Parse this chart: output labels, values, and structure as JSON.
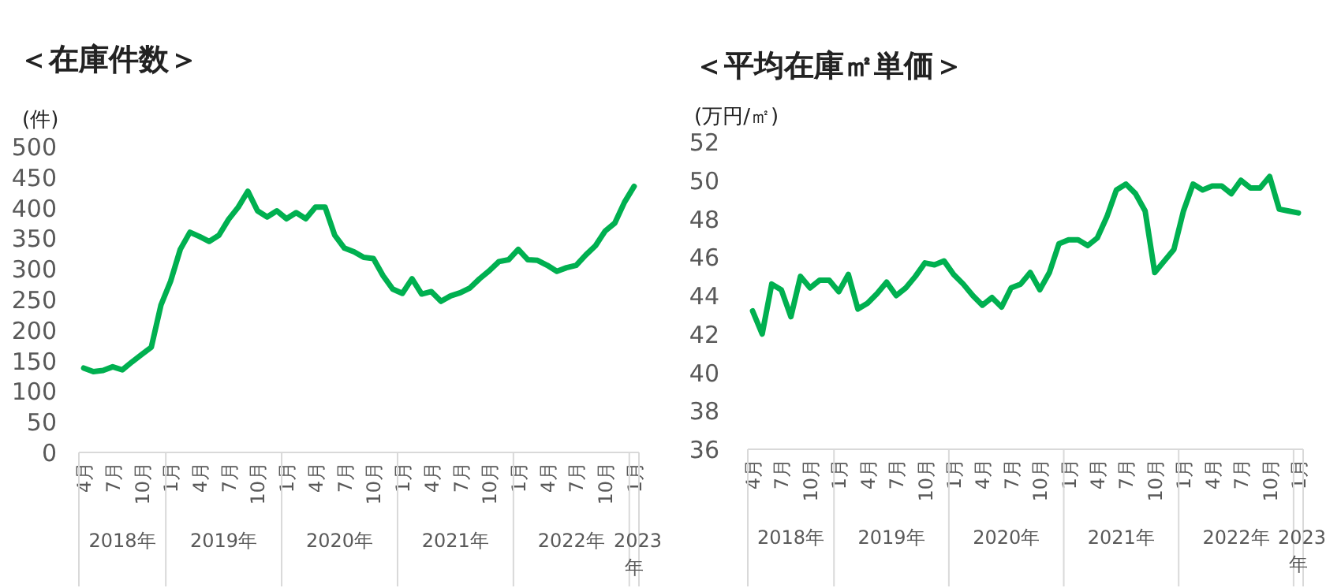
{
  "chart_data": [
    {
      "type": "line",
      "title": "＜在庫件数＞",
      "ylabel": "(件)",
      "color": "#00b050",
      "ylim": [
        0,
        500
      ],
      "yticks": [
        0,
        50,
        100,
        150,
        200,
        250,
        300,
        350,
        400,
        450,
        500
      ],
      "categories": [
        "4月",
        null,
        null,
        "7月",
        null,
        null,
        "10月",
        null,
        null,
        "1月",
        null,
        null,
        "4月",
        null,
        null,
        "7月",
        null,
        null,
        "10月",
        null,
        null,
        "1月",
        null,
        null,
        "4月",
        null,
        null,
        "7月",
        null,
        null,
        "10月",
        null,
        null,
        "1月",
        null,
        null,
        "4月",
        null,
        null,
        "7月",
        null,
        null,
        "10月",
        null,
        null,
        "1月",
        null,
        null,
        "4月",
        null,
        null,
        "7月",
        null,
        null,
        "10月",
        null,
        null,
        "1月"
      ],
      "values": [
        138,
        132,
        134,
        140,
        135,
        148,
        160,
        172,
        241,
        280,
        332,
        360,
        353,
        345,
        355,
        381,
        401,
        427,
        395,
        385,
        395,
        382,
        392,
        382,
        401,
        401,
        355,
        334,
        328,
        319,
        317,
        289,
        267,
        260,
        284,
        259,
        263,
        247,
        256,
        261,
        269,
        284,
        297,
        312,
        315,
        332,
        315,
        314,
        306,
        296,
        302,
        306,
        323,
        338,
        362,
        375,
        409,
        435
      ],
      "annotations": [
        "2018年",
        "2019年",
        "2020年",
        "2021年",
        "2022年",
        "2023年"
      ]
    },
    {
      "type": "line",
      "title": "＜平均在庫㎡単価＞",
      "ylabel": "(万円/㎡)",
      "color": "#00b050",
      "ylim": [
        36,
        52
      ],
      "yticks": [
        36,
        38,
        40,
        42,
        44,
        46,
        48,
        50,
        52
      ],
      "categories": [
        "4月",
        null,
        null,
        "7月",
        null,
        null,
        "10月",
        null,
        null,
        "1月",
        null,
        null,
        "4月",
        null,
        null,
        "7月",
        null,
        null,
        "10月",
        null,
        null,
        "1月",
        null,
        null,
        "4月",
        null,
        null,
        "7月",
        null,
        null,
        "10月",
        null,
        null,
        "1月",
        null,
        null,
        "4月",
        null,
        null,
        "7月",
        null,
        null,
        "10月",
        null,
        null,
        "1月",
        null,
        null,
        "4月",
        null,
        null,
        "7月",
        null,
        null,
        "10月",
        null,
        null,
        "1月"
      ],
      "values": [
        43.2,
        42.0,
        44.6,
        44.3,
        42.9,
        45.0,
        44.4,
        44.8,
        44.8,
        44.2,
        45.1,
        43.3,
        43.6,
        44.1,
        44.7,
        44.0,
        44.4,
        45.0,
        45.7,
        45.6,
        45.8,
        45.1,
        44.6,
        44.0,
        43.5,
        43.9,
        43.4,
        44.4,
        44.6,
        45.2,
        44.3,
        45.2,
        46.7,
        46.9,
        46.9,
        46.6,
        47.0,
        48.1,
        49.5,
        49.8,
        49.3,
        48.4,
        45.2,
        45.8,
        46.4,
        48.4,
        49.8,
        49.5,
        49.7,
        49.7,
        49.3,
        50.0,
        49.6,
        49.6,
        50.2,
        48.5,
        48.4,
        48.3
      ],
      "annotations": [
        "2018年",
        "2019年",
        "2020年",
        "2021年",
        "2022年",
        "2023年"
      ]
    }
  ]
}
